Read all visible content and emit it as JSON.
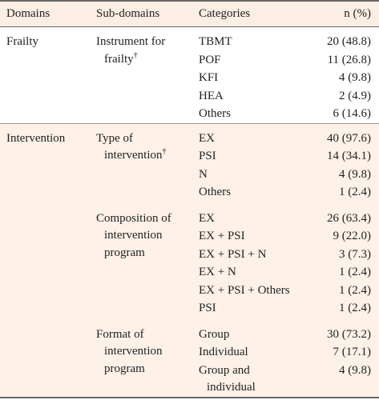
{
  "header": [
    "Domains",
    "Sub-domains",
    "Categories",
    "n (%)"
  ],
  "sections": [
    {
      "domain": "Frailty",
      "groups": [
        {
          "subdomain": "Instrument for frailty",
          "mark": "†",
          "rows": [
            [
              "TBMT",
              "20 (48.8)"
            ],
            [
              "POF",
              "11 (26.8)"
            ],
            [
              "KFI",
              "4 (9.8)"
            ],
            [
              "HEA",
              "2 (4.9)"
            ],
            [
              "Others",
              "6 (14.6)"
            ]
          ]
        }
      ]
    },
    {
      "domain": "Intervention",
      "groups": [
        {
          "subdomain": "Type of intervention",
          "mark": "†",
          "rows": [
            [
              "EX",
              "40 (97.6)"
            ],
            [
              "PSI",
              "14 (34.1)"
            ],
            [
              "N",
              "4 (9.8)"
            ],
            [
              "Others",
              "1 (2.4)"
            ]
          ]
        },
        {
          "subdomain": "Composition of intervention program",
          "rows": [
            [
              "EX",
              "26 (63.4)"
            ],
            [
              "EX + PSI",
              "9 (22.0)"
            ],
            [
              "EX + PSI + N",
              "3 (7.3)"
            ],
            [
              "EX + N",
              "1 (2.4)"
            ],
            [
              "EX + PSI + Others",
              "1 (2.4)"
            ],
            [
              "PSI",
              "1 (2.4)"
            ]
          ]
        },
        {
          "subdomain": "Format of intervention program",
          "rows": [
            [
              "Group",
              "30 (73.2)"
            ],
            [
              "Individual",
              "7 (17.1)"
            ],
            [
              "Group and individual",
              "4 (9.8)"
            ]
          ]
        }
      ]
    }
  ]
}
